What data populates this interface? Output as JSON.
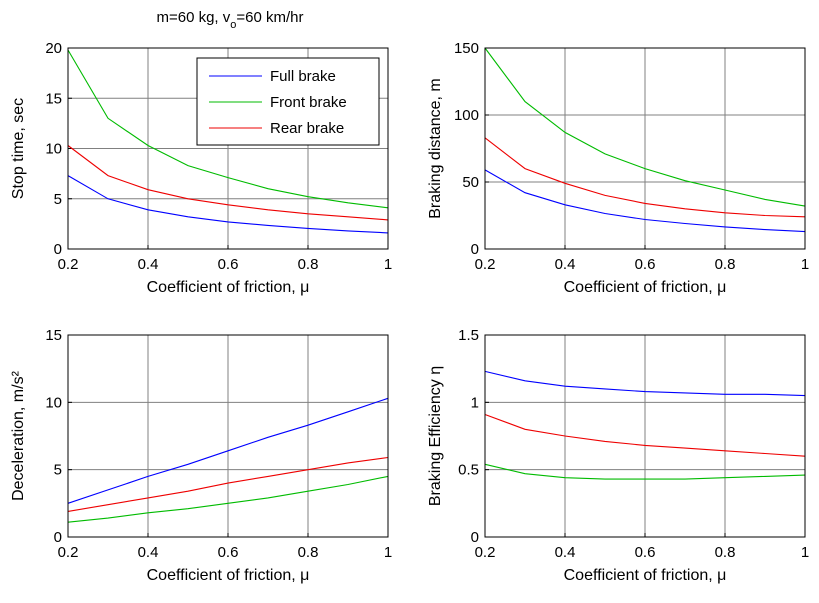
{
  "figure": {
    "title_prefix": "m=60 kg, v",
    "title_sub": "o",
    "title_suffix": "=60 km/hr"
  },
  "legend": {
    "full": "Full brake",
    "front": "Front brake",
    "rear": "Rear brake"
  },
  "colors": {
    "full": "#0000ff",
    "front": "#00bb00",
    "rear": "#ee0000"
  },
  "chart_data": [
    {
      "type": "line",
      "title": "m=60 kg, vo=60 km/hr",
      "xlabel": "Coefficient of friction, μ",
      "ylabel": "Stop time, sec",
      "xlim": [
        0.2,
        1
      ],
      "ylim": [
        0,
        20
      ],
      "xticks": [
        "0.2",
        "0.4",
        "0.6",
        "0.8",
        "1"
      ],
      "yticks": [
        "0",
        "5",
        "10",
        "15",
        "20"
      ],
      "x": [
        0.2,
        0.3,
        0.4,
        0.5,
        0.6,
        0.7,
        0.8,
        0.9,
        1.0
      ],
      "series": [
        {
          "name": "Full brake",
          "key": "full",
          "values": [
            7.3,
            5.0,
            3.9,
            3.2,
            2.7,
            2.35,
            2.05,
            1.8,
            1.6
          ]
        },
        {
          "name": "Front brake",
          "key": "front",
          "values": [
            19.8,
            13.0,
            10.3,
            8.3,
            7.1,
            6.0,
            5.2,
            4.6,
            4.1
          ]
        },
        {
          "name": "Rear brake",
          "key": "rear",
          "values": [
            10.3,
            7.3,
            5.9,
            5.0,
            4.4,
            3.9,
            3.5,
            3.2,
            2.9
          ]
        }
      ]
    },
    {
      "type": "line",
      "xlabel": "Coefficient of friction, μ",
      "ylabel": "Braking distance, m",
      "xlim": [
        0.2,
        1
      ],
      "ylim": [
        0,
        150
      ],
      "xticks": [
        "0.2",
        "0.4",
        "0.6",
        "0.8",
        "1"
      ],
      "yticks": [
        "0",
        "50",
        "100",
        "150"
      ],
      "x": [
        0.2,
        0.3,
        0.4,
        0.5,
        0.6,
        0.7,
        0.8,
        0.9,
        1.0
      ],
      "series": [
        {
          "name": "Full brake",
          "key": "full",
          "values": [
            59,
            42,
            33,
            26.5,
            22,
            19,
            16.5,
            14.5,
            13
          ]
        },
        {
          "name": "Front brake",
          "key": "front",
          "values": [
            150,
            110,
            87,
            71,
            60,
            51,
            44,
            37,
            32
          ]
        },
        {
          "name": "Rear brake",
          "key": "rear",
          "values": [
            83,
            60,
            49,
            40,
            34,
            30,
            27,
            25,
            24
          ]
        }
      ]
    },
    {
      "type": "line",
      "xlabel": "Coefficient of friction, μ",
      "ylabel": "Deceleration, m/s²",
      "xlim": [
        0.2,
        1
      ],
      "ylim": [
        0,
        15
      ],
      "xticks": [
        "0.2",
        "0.4",
        "0.6",
        "0.8",
        "1"
      ],
      "yticks": [
        "0",
        "5",
        "10",
        "15"
      ],
      "x": [
        0.2,
        0.3,
        0.4,
        0.5,
        0.6,
        0.7,
        0.8,
        0.9,
        1.0
      ],
      "series": [
        {
          "name": "Full brake",
          "key": "full",
          "values": [
            2.5,
            3.5,
            4.5,
            5.4,
            6.4,
            7.4,
            8.3,
            9.3,
            10.3
          ]
        },
        {
          "name": "Front brake",
          "key": "front",
          "values": [
            1.1,
            1.4,
            1.8,
            2.1,
            2.5,
            2.9,
            3.4,
            3.9,
            4.5
          ]
        },
        {
          "name": "Rear brake",
          "key": "rear",
          "values": [
            1.9,
            2.4,
            2.9,
            3.4,
            4.0,
            4.5,
            5.0,
            5.5,
            5.9
          ]
        }
      ]
    },
    {
      "type": "line",
      "xlabel": "Coefficient of friction, μ",
      "ylabel": "Braking Efficiency η",
      "xlim": [
        0.2,
        1
      ],
      "ylim": [
        0,
        1.5
      ],
      "xticks": [
        "0.2",
        "0.4",
        "0.6",
        "0.8",
        "1"
      ],
      "yticks": [
        "0",
        "0.5",
        "1",
        "1.5"
      ],
      "x": [
        0.2,
        0.3,
        0.4,
        0.5,
        0.6,
        0.7,
        0.8,
        0.9,
        1.0
      ],
      "series": [
        {
          "name": "Full brake",
          "key": "full",
          "values": [
            1.23,
            1.16,
            1.12,
            1.1,
            1.08,
            1.07,
            1.06,
            1.06,
            1.05
          ]
        },
        {
          "name": "Front brake",
          "key": "front",
          "values": [
            0.54,
            0.47,
            0.44,
            0.43,
            0.43,
            0.43,
            0.44,
            0.45,
            0.46
          ]
        },
        {
          "name": "Rear brake",
          "key": "rear",
          "values": [
            0.91,
            0.8,
            0.75,
            0.71,
            0.68,
            0.66,
            0.64,
            0.62,
            0.6
          ]
        }
      ]
    }
  ]
}
